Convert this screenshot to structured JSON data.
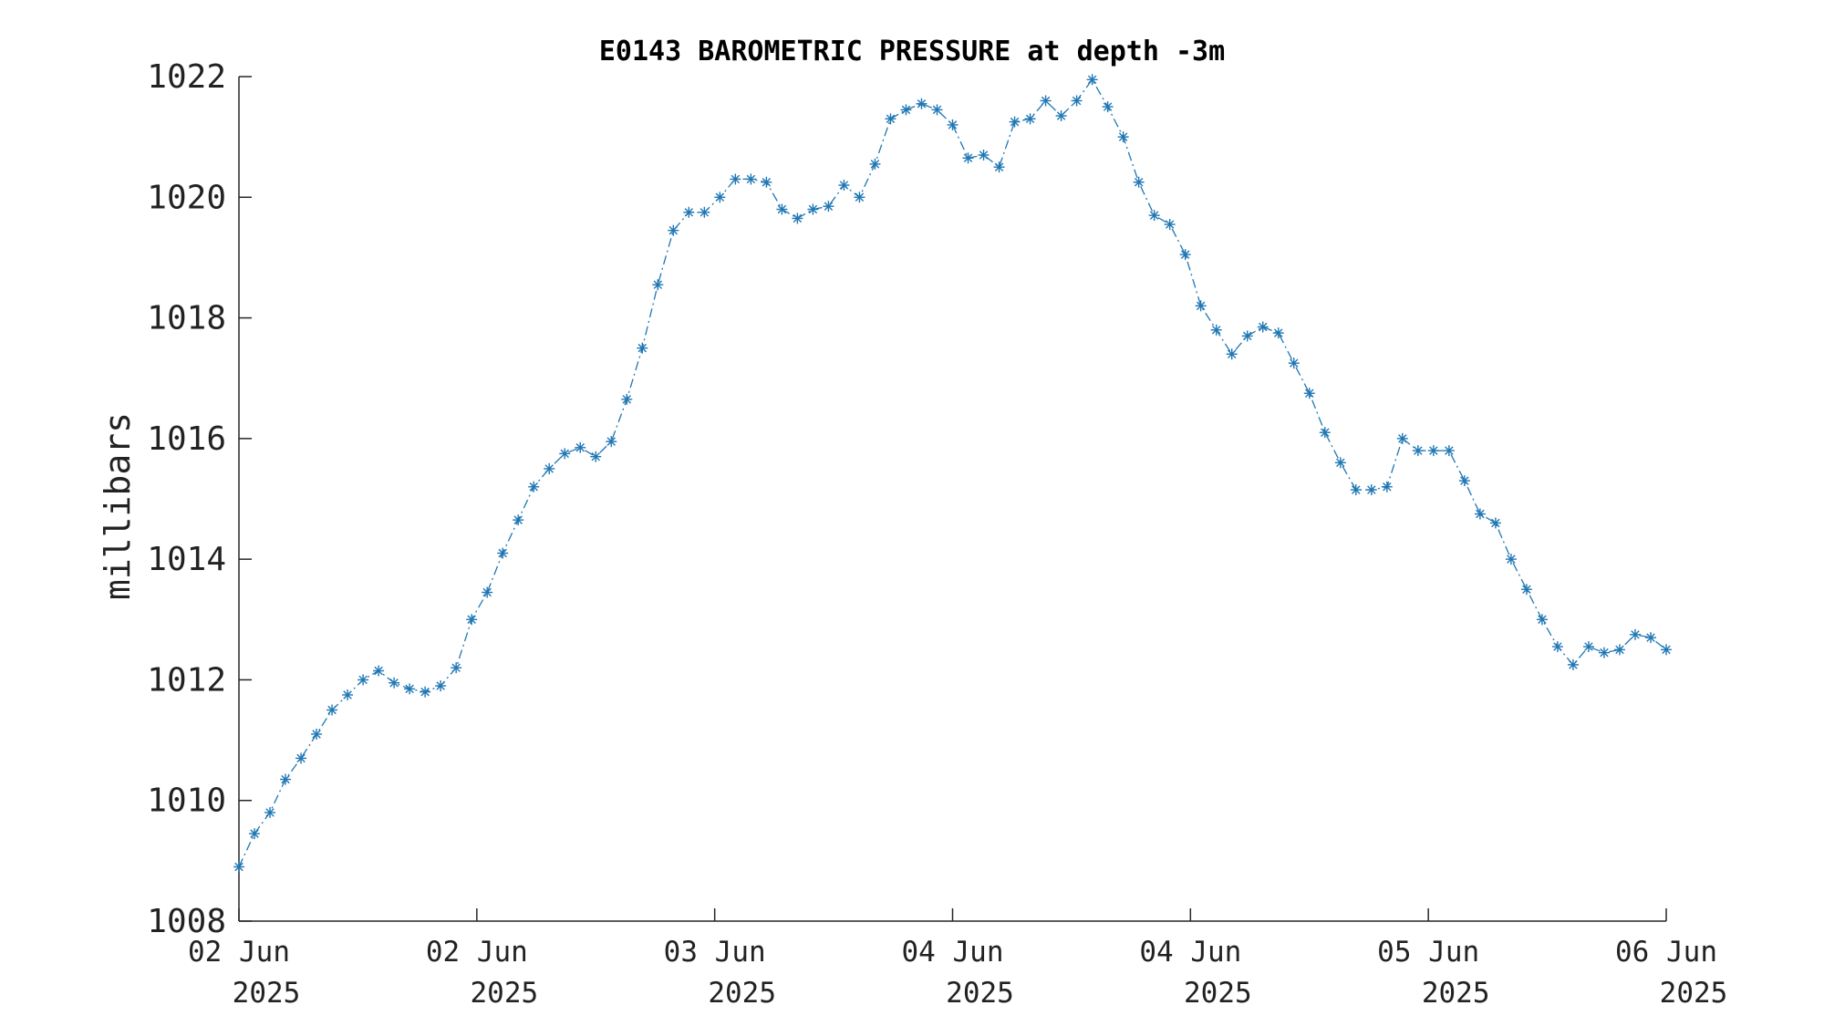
{
  "chart_data": {
    "type": "line",
    "title": "E0143 BAROMETRIC PRESSURE at depth -3m",
    "xlabel": "",
    "ylabel": "millibars",
    "ylim": [
      1008,
      1022
    ],
    "yticks": [
      1008,
      1010,
      1012,
      1014,
      1016,
      1018,
      1020,
      1022
    ],
    "xlim": [
      0,
      96
    ],
    "xticks": [
      {
        "at": 0,
        "line1": "02 Jun",
        "line2": "2025"
      },
      {
        "at": 16,
        "line1": "02 Jun",
        "line2": "2025"
      },
      {
        "at": 32,
        "line1": "03 Jun",
        "line2": "2025"
      },
      {
        "at": 48,
        "line1": "04 Jun",
        "line2": "2025"
      },
      {
        "at": 64,
        "line1": "04 Jun",
        "line2": "2025"
      },
      {
        "at": 80,
        "line1": "05 Jun",
        "line2": "2025"
      },
      {
        "at": 96,
        "line1": "06 Jun",
        "line2": "2025"
      }
    ],
    "grid": false,
    "series": [
      {
        "color": "#1f77b4",
        "marker": "asterisk",
        "line_style": "dash-dot",
        "values": [
          1008.9,
          1009.45,
          1009.8,
          1010.35,
          1010.7,
          1011.1,
          1011.5,
          1011.75,
          1012.0,
          1012.15,
          1011.95,
          1011.85,
          1011.8,
          1011.9,
          1012.2,
          1013.0,
          1013.45,
          1014.1,
          1014.65,
          1015.2,
          1015.5,
          1015.75,
          1015.85,
          1015.7,
          1015.95,
          1016.65,
          1017.5,
          1018.55,
          1019.45,
          1019.75,
          1019.75,
          1020.0,
          1020.3,
          1020.3,
          1020.25,
          1019.8,
          1019.65,
          1019.8,
          1019.85,
          1020.2,
          1020.0,
          1020.55,
          1021.3,
          1021.45,
          1021.55,
          1021.45,
          1021.2,
          1020.65,
          1020.7,
          1020.5,
          1021.25,
          1021.3,
          1021.6,
          1021.35,
          1021.6,
          1021.95,
          1021.5,
          1021.0,
          1020.25,
          1019.7,
          1019.55,
          1019.05,
          1018.2,
          1017.8,
          1017.4,
          1017.7,
          1017.85,
          1017.75,
          1017.25,
          1016.75,
          1016.1,
          1015.6,
          1015.15,
          1015.15,
          1015.2,
          1016.0,
          1015.8,
          1015.8,
          1015.8,
          1015.3,
          1014.75,
          1014.6,
          1014.0,
          1013.5,
          1013.0,
          1012.55,
          1012.25,
          1012.55,
          1012.45,
          1012.5,
          1012.75,
          1012.7,
          1012.5
        ]
      }
    ]
  }
}
